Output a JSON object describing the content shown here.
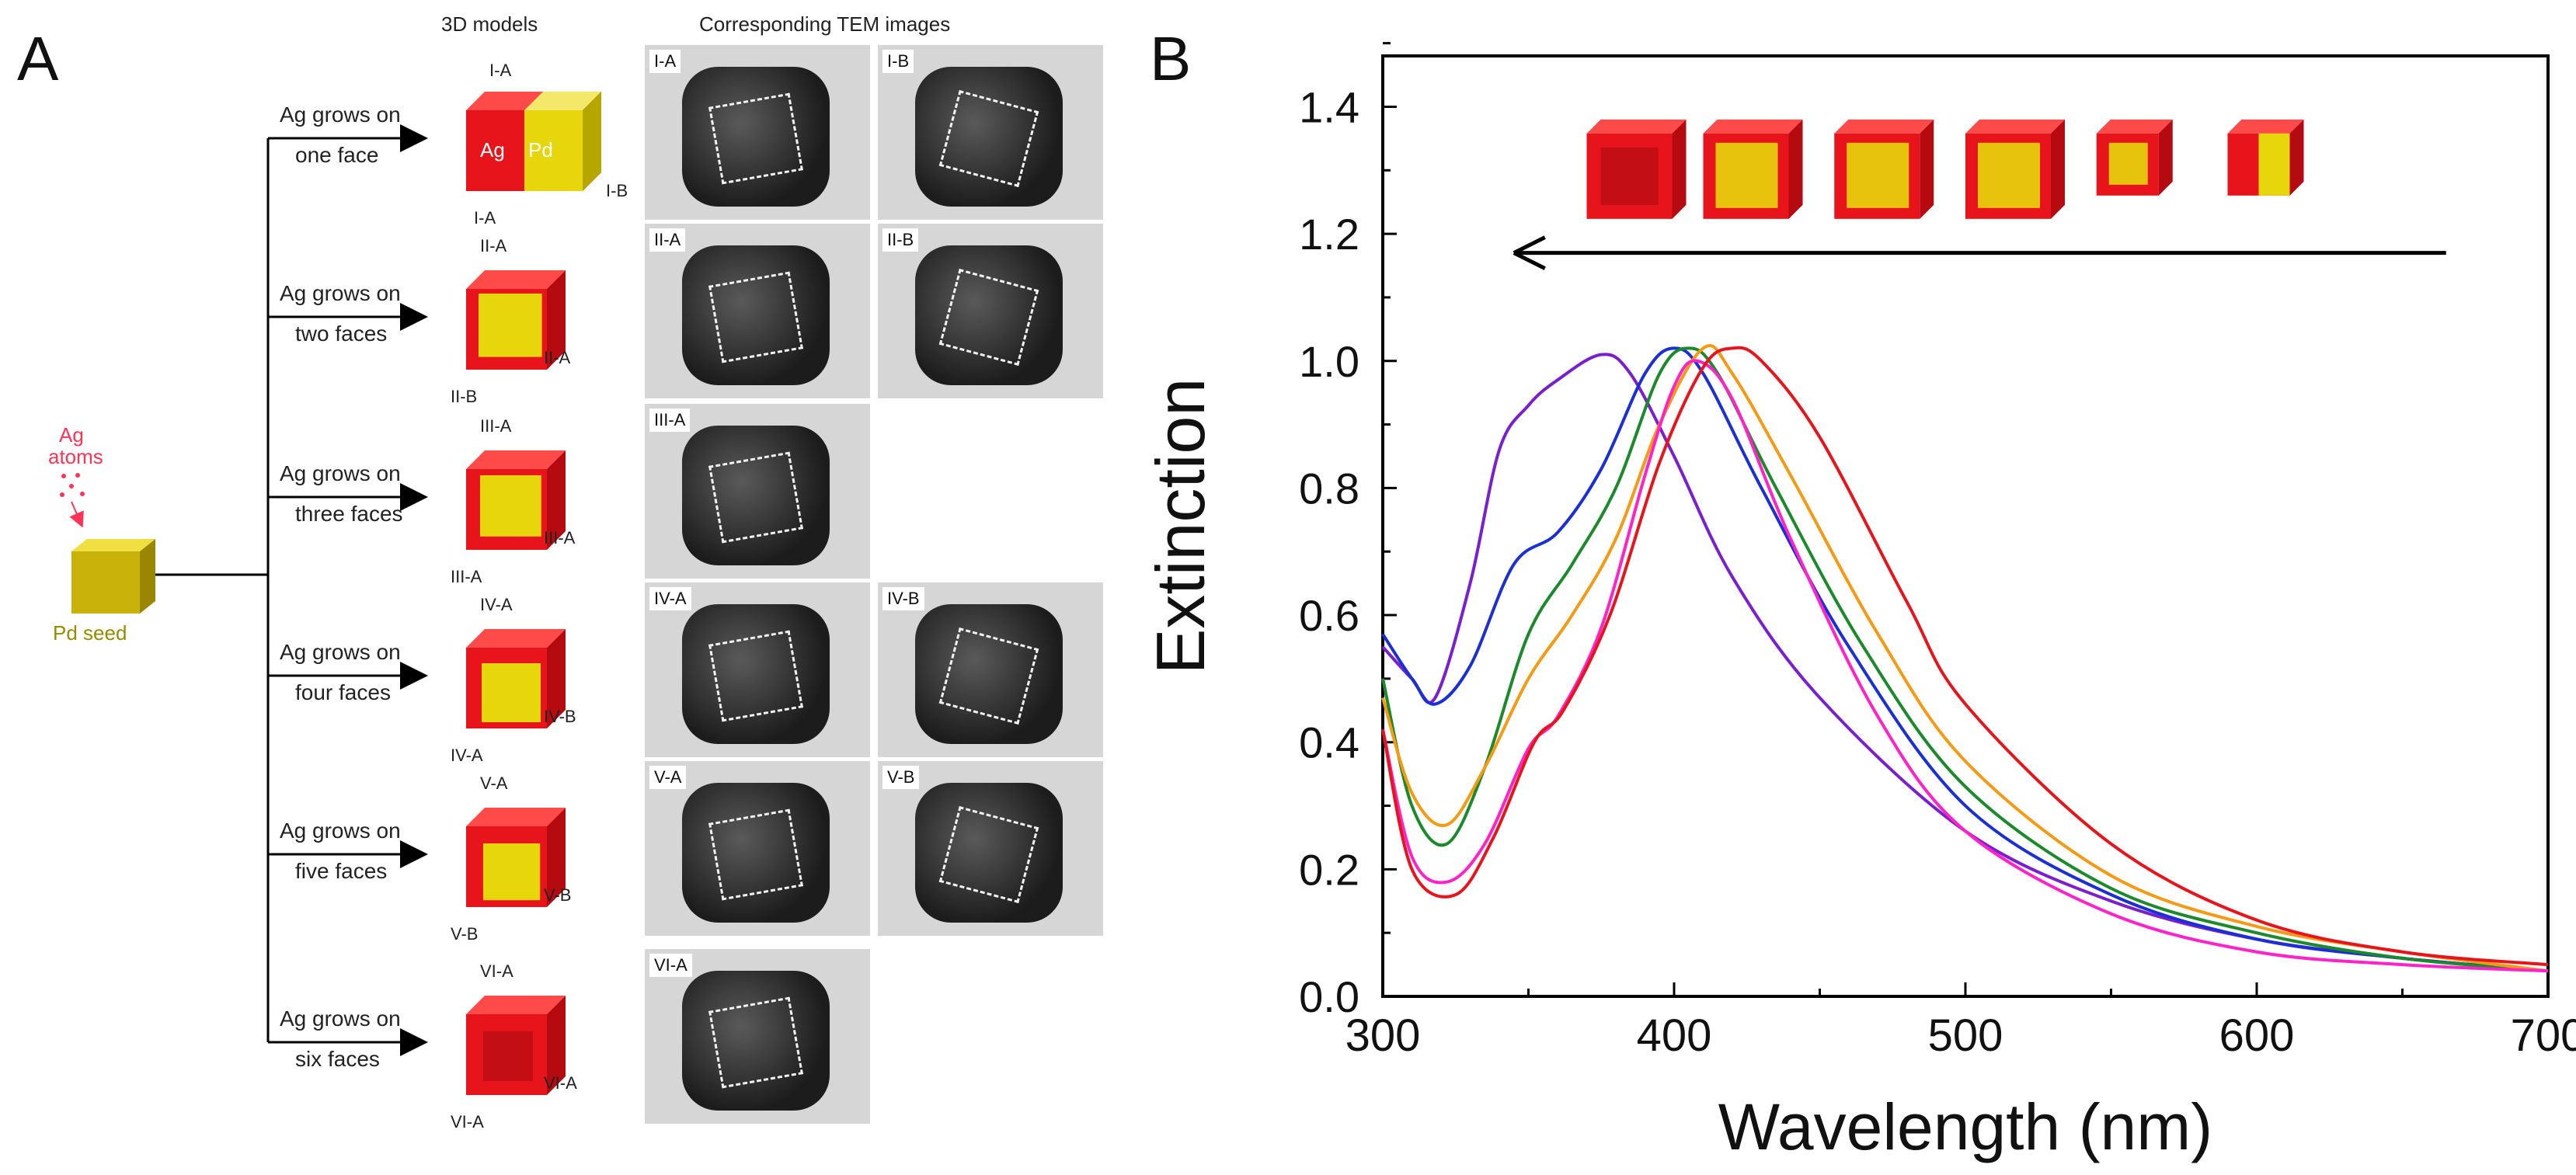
{
  "panelA": {
    "letter": "A",
    "header_models": "3D models",
    "header_tem": "Corresponding TEM images",
    "seed": {
      "atoms_label_1": "Ag",
      "atoms_label_2": "atoms",
      "seed_label": "Pd seed"
    },
    "colors": {
      "ag": "#e8141b",
      "pd": "#e8d60c",
      "seed_text": "#9a8a00",
      "atoms_text": "#ff3355"
    },
    "rows": [
      {
        "arrow_1": "Ag grows on",
        "arrow_2": "one face",
        "model_labels": [
          "I-A",
          "Ag",
          "Pd",
          "I-B",
          "I-A"
        ],
        "tem": [
          "I-A",
          "I-B"
        ]
      },
      {
        "arrow_1": "Ag grows on",
        "arrow_2": "two faces",
        "model_labels": [
          "II-A",
          "II-A",
          "II-B"
        ],
        "tem": [
          "II-A",
          "II-B"
        ]
      },
      {
        "arrow_1": "Ag grows on",
        "arrow_2": "three faces",
        "model_labels": [
          "III-A",
          "III-A",
          "III-A"
        ],
        "tem": [
          "III-A"
        ]
      },
      {
        "arrow_1": "Ag grows on",
        "arrow_2": "four faces",
        "model_labels": [
          "IV-A",
          "IV-B",
          "IV-A"
        ],
        "tem": [
          "IV-A",
          "IV-B"
        ]
      },
      {
        "arrow_1": "Ag grows on",
        "arrow_2": "five faces",
        "model_labels": [
          "V-A",
          "V-B",
          "V-B"
        ],
        "tem": [
          "V-A",
          "V-B"
        ]
      },
      {
        "arrow_1": "Ag grows on",
        "arrow_2": "six faces",
        "model_labels": [
          "VI-A",
          "VI-A",
          "VI-A"
        ],
        "tem": [
          "VI-A"
        ]
      }
    ]
  },
  "chart_data": {
    "type": "line",
    "panel_letter": "B",
    "title": "",
    "xlabel": "Wavelength (nm)",
    "ylabel": "Extinction",
    "xlim": [
      300,
      700
    ],
    "ylim": [
      0,
      1.48
    ],
    "xticks": [
      300,
      400,
      500,
      600,
      700
    ],
    "yticks": [
      0.0,
      0.2,
      0.4,
      0.6,
      0.8,
      1.0,
      1.2,
      1.4
    ],
    "ytick_labels": [
      "0.0",
      "0.2",
      "0.4",
      "0.6",
      "0.8",
      "1.0",
      "1.2",
      "1.4"
    ],
    "annotation": "arrow pointing toward shorter wavelength with six cube models above",
    "series": [
      {
        "name": "purple",
        "color": "#7a1fd0",
        "x": [
          300,
          310,
          318,
          330,
          340,
          350,
          360,
          375,
          385,
          400,
          420,
          450,
          500,
          550,
          600,
          650,
          700
        ],
        "y": [
          0.55,
          0.5,
          0.47,
          0.65,
          0.86,
          0.93,
          0.97,
          1.01,
          0.98,
          0.85,
          0.66,
          0.47,
          0.26,
          0.15,
          0.09,
          0.06,
          0.04
        ]
      },
      {
        "name": "blue",
        "color": "#1a2fd6",
        "x": [
          300,
          310,
          318,
          330,
          345,
          360,
          375,
          390,
          400,
          410,
          430,
          460,
          500,
          550,
          600,
          650,
          700
        ],
        "y": [
          0.57,
          0.5,
          0.46,
          0.52,
          0.68,
          0.73,
          0.83,
          0.98,
          1.02,
          0.98,
          0.8,
          0.55,
          0.3,
          0.16,
          0.09,
          0.06,
          0.04
        ]
      },
      {
        "name": "green",
        "color": "#1a8a2a",
        "x": [
          300,
          310,
          322,
          335,
          350,
          365,
          380,
          395,
          405,
          415,
          435,
          465,
          500,
          550,
          600,
          650,
          700
        ],
        "y": [
          0.5,
          0.3,
          0.24,
          0.36,
          0.57,
          0.68,
          0.8,
          0.98,
          1.02,
          0.98,
          0.8,
          0.55,
          0.33,
          0.17,
          0.1,
          0.06,
          0.04
        ]
      },
      {
        "name": "orange",
        "color": "#f59a12",
        "x": [
          300,
          310,
          322,
          335,
          350,
          365,
          380,
          395,
          410,
          420,
          440,
          470,
          500,
          550,
          600,
          650,
          700
        ],
        "y": [
          0.47,
          0.32,
          0.27,
          0.36,
          0.5,
          0.6,
          0.72,
          0.9,
          1.02,
          0.98,
          0.82,
          0.57,
          0.37,
          0.19,
          0.11,
          0.07,
          0.04
        ]
      },
      {
        "name": "magenta",
        "color": "#ff22c8",
        "x": [
          300,
          310,
          322,
          335,
          350,
          360,
          375,
          390,
          400,
          408,
          420,
          440,
          470,
          500,
          550,
          600,
          650,
          700
        ],
        "y": [
          0.42,
          0.22,
          0.18,
          0.24,
          0.39,
          0.44,
          0.58,
          0.82,
          0.96,
          1.0,
          0.94,
          0.72,
          0.44,
          0.26,
          0.13,
          0.07,
          0.05,
          0.04
        ]
      },
      {
        "name": "red",
        "color": "#e8141b",
        "x": [
          300,
          310,
          325,
          338,
          352,
          362,
          378,
          395,
          410,
          420,
          430,
          450,
          480,
          500,
          550,
          600,
          650,
          700
        ],
        "y": [
          0.42,
          0.2,
          0.16,
          0.25,
          0.4,
          0.45,
          0.6,
          0.84,
          0.99,
          1.02,
          1.0,
          0.88,
          0.62,
          0.46,
          0.24,
          0.12,
          0.07,
          0.05
        ]
      }
    ]
  }
}
